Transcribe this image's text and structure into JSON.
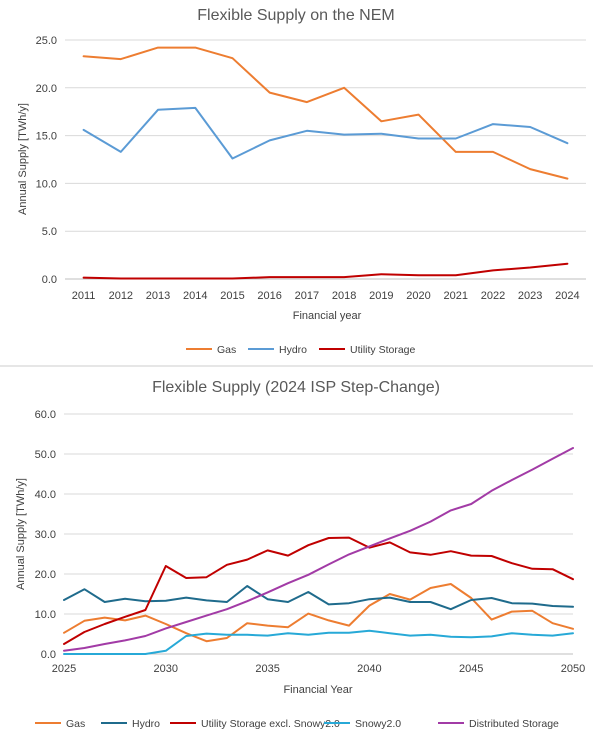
{
  "chart_data": [
    {
      "type": "line",
      "title": "Flexible Supply on the NEM",
      "xlabel": "Financial year",
      "ylabel": "Annual Supply [TWh/y]",
      "ylim": [
        0,
        25
      ],
      "yticks": [
        "0.0",
        "5.0",
        "10.0",
        "15.0",
        "20.0",
        "25.0"
      ],
      "categories": [
        "2011",
        "2012",
        "2013",
        "2014",
        "2015",
        "2016",
        "2017",
        "2018",
        "2019",
        "2020",
        "2021",
        "2022",
        "2023",
        "2024"
      ],
      "grid": "horizontal",
      "legend": "bottom",
      "series": [
        {
          "name": "Gas",
          "color": "#ed7d31",
          "values": [
            23.3,
            23.0,
            24.2,
            24.2,
            23.1,
            19.5,
            18.5,
            20.0,
            16.5,
            17.2,
            13.3,
            13.3,
            11.5,
            10.5
          ]
        },
        {
          "name": "Hydro",
          "color": "#5b9bd5",
          "values": [
            15.6,
            13.3,
            17.7,
            17.9,
            12.6,
            14.5,
            15.5,
            15.1,
            15.2,
            14.7,
            14.7,
            16.2,
            15.9,
            14.2
          ]
        },
        {
          "name": "Utility Storage",
          "color": "#c00000",
          "values": [
            0.15,
            0.05,
            0.05,
            0.05,
            0.05,
            0.2,
            0.2,
            0.2,
            0.5,
            0.4,
            0.4,
            0.9,
            1.2,
            1.6
          ]
        }
      ]
    },
    {
      "type": "line",
      "title": "Flexible Supply (2024 ISP Step-Change)",
      "xlabel": "Financial Year",
      "ylabel": "Annual Supply [TWh/y]",
      "ylim": [
        0,
        60
      ],
      "yticks": [
        "0.0",
        "10.0",
        "20.0",
        "30.0",
        "40.0",
        "50.0",
        "60.0"
      ],
      "xlim": [
        2025,
        2050
      ],
      "xticks": [
        "2025",
        "2030",
        "2035",
        "2040",
        "2045",
        "2050"
      ],
      "x": [
        2025,
        2026,
        2027,
        2028,
        2029,
        2030,
        2031,
        2032,
        2033,
        2034,
        2035,
        2036,
        2037,
        2038,
        2039,
        2040,
        2041,
        2042,
        2043,
        2044,
        2045,
        2046,
        2047,
        2048,
        2049,
        2050
      ],
      "grid": "horizontal",
      "legend": "bottom",
      "series": [
        {
          "name": "Gas",
          "color": "#ed7d31",
          "values": [
            5.3,
            8.3,
            9.1,
            8.4,
            9.6,
            7.5,
            5.2,
            3.2,
            4.0,
            7.7,
            7.1,
            6.7,
            10.1,
            8.4,
            7.1,
            12.1,
            15.0,
            13.6,
            16.5,
            17.5,
            14.0,
            8.6,
            10.6,
            10.8,
            7.7,
            6.3
          ]
        },
        {
          "name": "Hydro",
          "color": "#1f6b8c",
          "values": [
            13.5,
            16.2,
            13.0,
            13.8,
            13.2,
            13.3,
            14.1,
            13.4,
            13.0,
            17.0,
            13.7,
            13.0,
            15.5,
            12.4,
            12.7,
            13.7,
            14.1,
            13.0,
            13.0,
            11.2,
            13.5,
            14.0,
            12.7,
            12.6,
            12.0,
            11.8
          ]
        },
        {
          "name": "Utility Storage excl. Snowy2.0",
          "color": "#c00000",
          "values": [
            2.5,
            5.5,
            7.5,
            9.3,
            11.0,
            22.0,
            19.0,
            19.2,
            22.3,
            23.6,
            25.9,
            24.6,
            27.2,
            29.0,
            29.1,
            26.6,
            27.9,
            25.4,
            24.8,
            25.7,
            24.6,
            24.5,
            22.7,
            21.3,
            21.2,
            18.7
          ]
        },
        {
          "name": "Snowy2.0",
          "color": "#27a9d7",
          "values": [
            0,
            0,
            0,
            0,
            0,
            0.8,
            4.5,
            5.1,
            4.8,
            4.8,
            4.6,
            5.2,
            4.8,
            5.3,
            5.3,
            5.8,
            5.2,
            4.6,
            4.8,
            4.3,
            4.2,
            4.4,
            5.2,
            4.8,
            4.6,
            5.2
          ]
        },
        {
          "name": "Distributed Storage",
          "color": "#a23ba6",
          "values": [
            0.8,
            1.5,
            2.5,
            3.4,
            4.5,
            6.4,
            8.0,
            9.6,
            11.2,
            13.2,
            15.4,
            17.7,
            19.8,
            22.4,
            24.9,
            26.9,
            28.9,
            30.8,
            33.1,
            35.9,
            37.5,
            40.8,
            43.5,
            46.1,
            48.8,
            51.5
          ]
        }
      ]
    }
  ]
}
